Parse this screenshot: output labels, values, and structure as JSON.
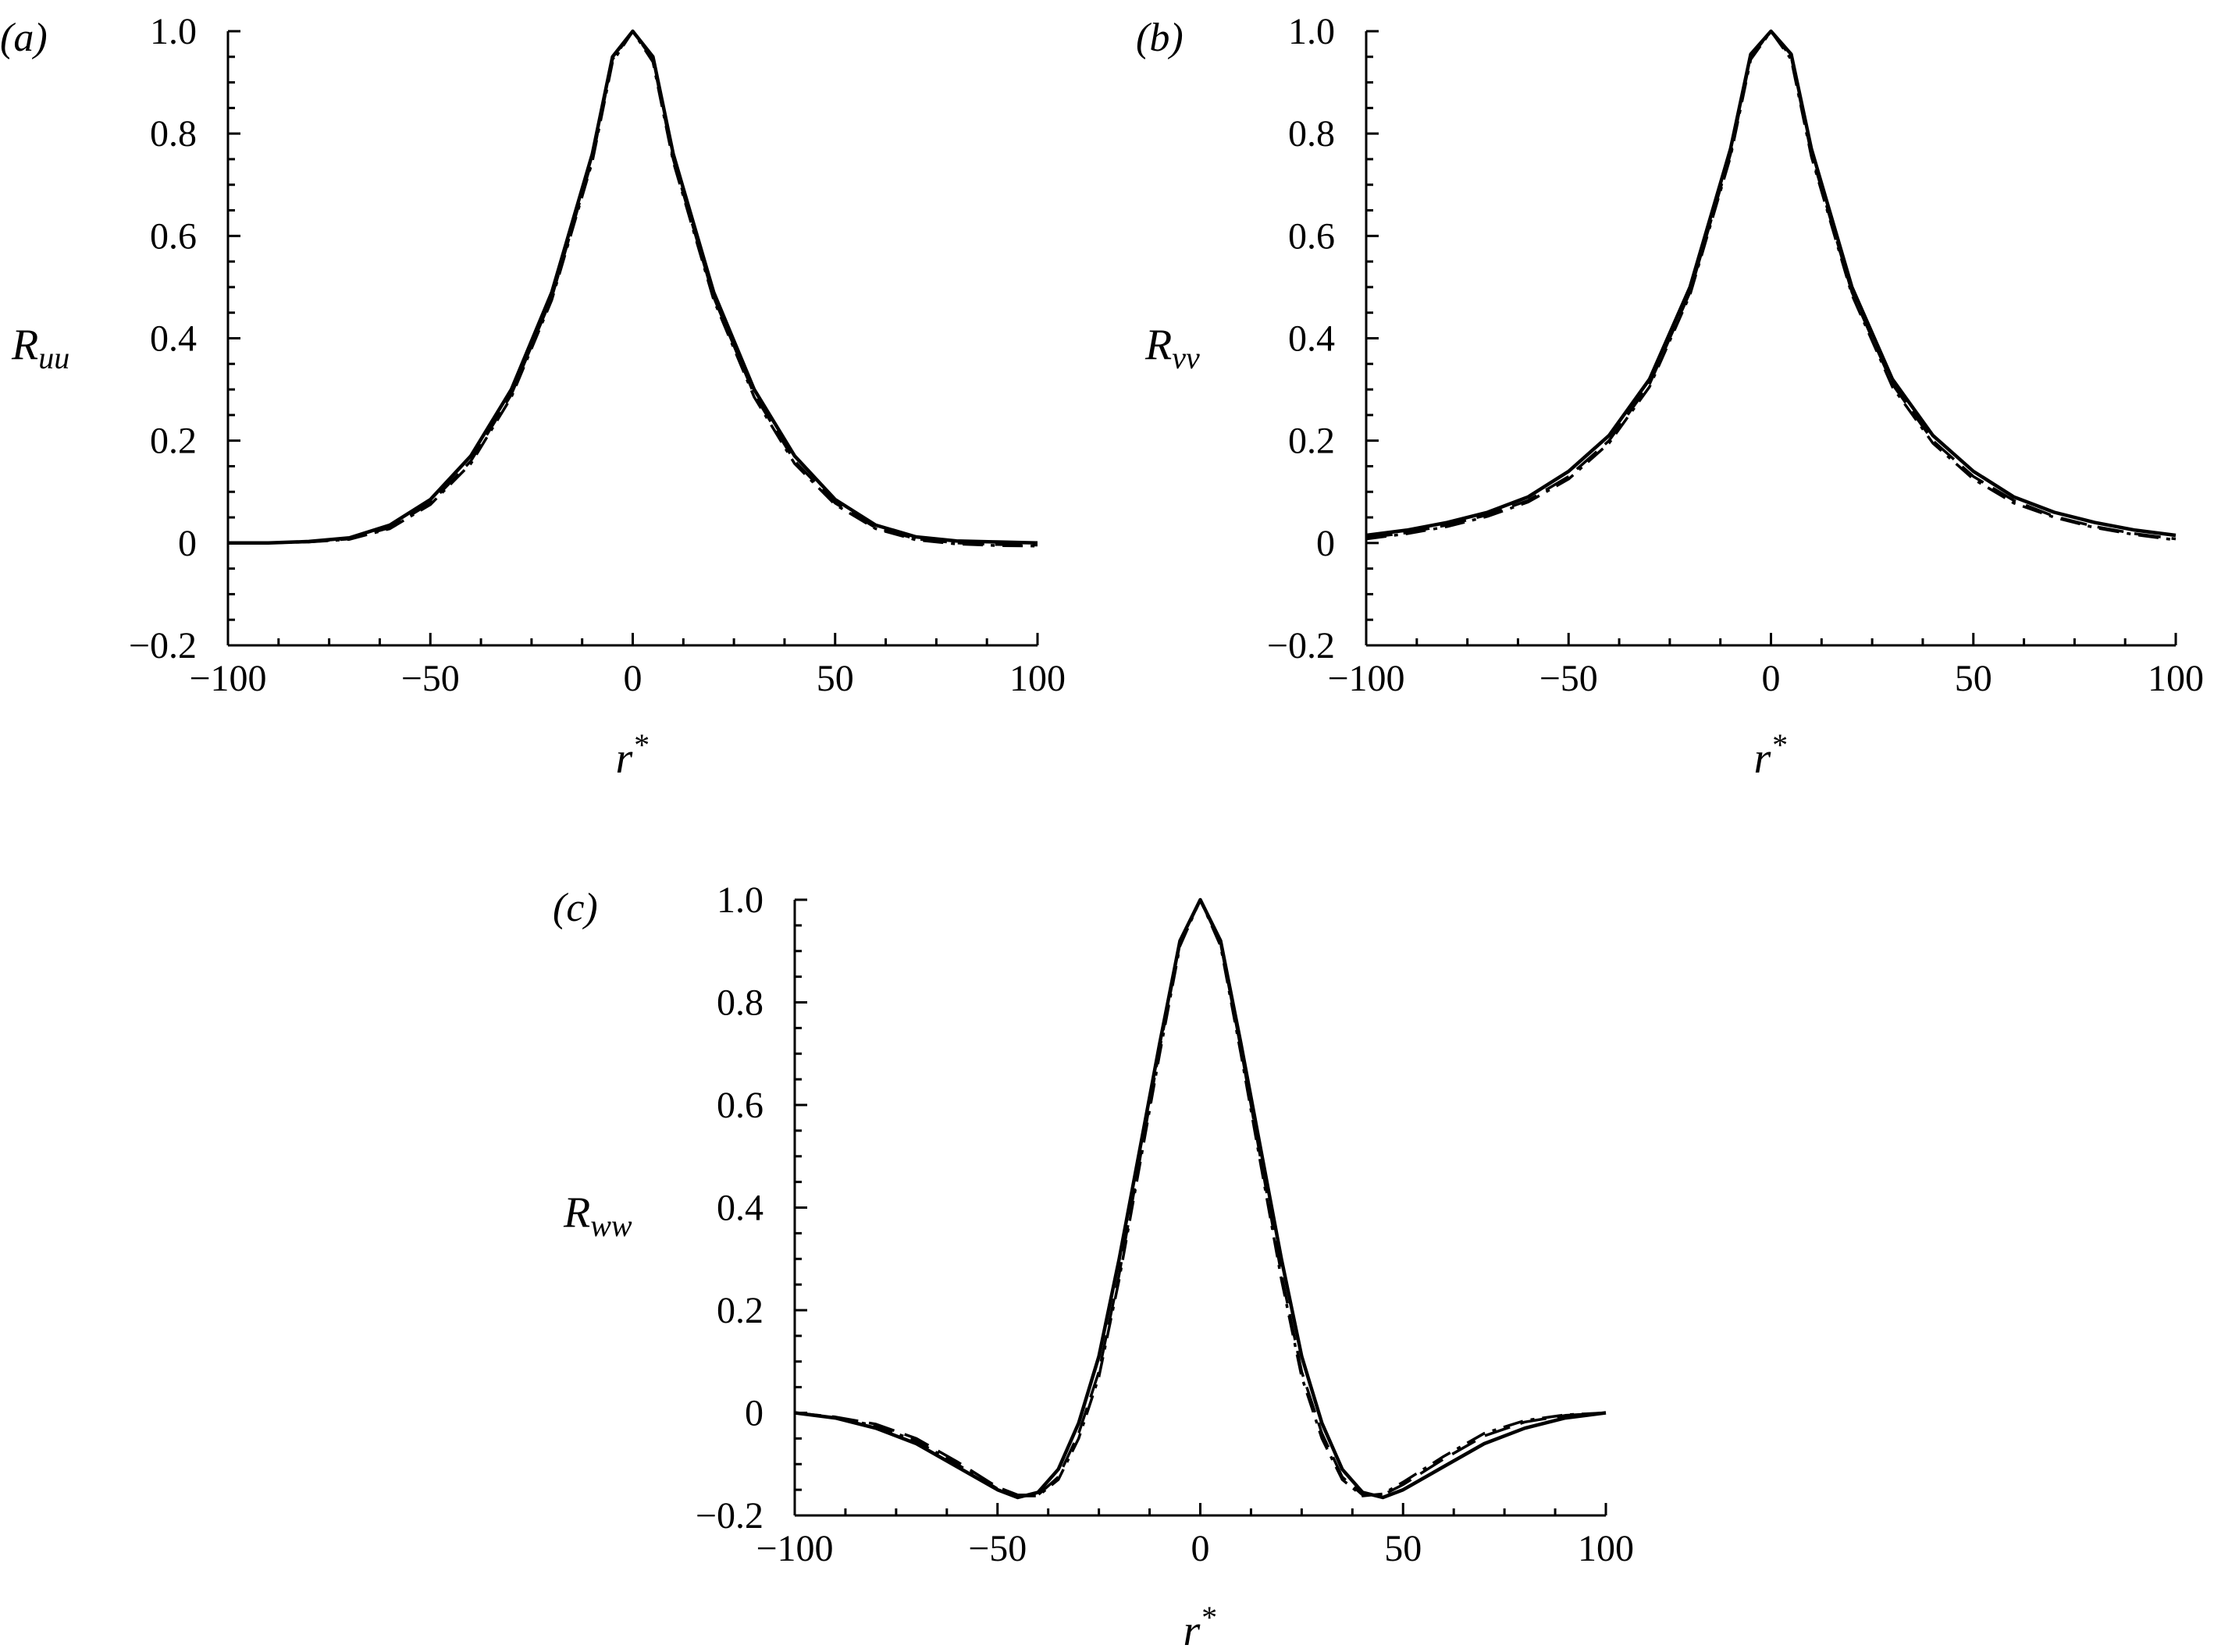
{
  "chart_data": [
    {
      "type": "line",
      "panel_label": "(a)",
      "ylabel_main": "R",
      "ylabel_sub": "uu",
      "xlabel_main": "r",
      "xlabel_sup": "*",
      "xlim": [
        -100,
        100
      ],
      "ylim": [
        -0.2,
        1.0
      ],
      "xticks": [
        -100,
        -50,
        0,
        50,
        100
      ],
      "xtick_labels": [
        "−100",
        "−50",
        "0",
        "50",
        "100"
      ],
      "yticks": [
        -0.2,
        0,
        0.2,
        0.4,
        0.6,
        0.8,
        1.0
      ],
      "ytick_labels": [
        "−0.2",
        "0",
        "0.2",
        "0.4",
        "0.6",
        "0.8",
        "1.0"
      ],
      "grid": false,
      "series": [
        {
          "style": "solid",
          "x": [
            -100,
            -90,
            -80,
            -70,
            -60,
            -50,
            -40,
            -30,
            -20,
            -10,
            -5,
            0,
            5,
            10,
            20,
            30,
            40,
            50,
            60,
            70,
            80,
            90,
            100
          ],
          "y": [
            0.0,
            0.0,
            0.003,
            0.01,
            0.035,
            0.085,
            0.17,
            0.3,
            0.49,
            0.76,
            0.95,
            1.0,
            0.95,
            0.76,
            0.49,
            0.3,
            0.17,
            0.085,
            0.035,
            0.012,
            0.004,
            0.002,
            0.0
          ]
        },
        {
          "style": "dashed",
          "x": [
            -100,
            -90,
            -80,
            -70,
            -60,
            -50,
            -40,
            -30,
            -20,
            -10,
            -5,
            0,
            5,
            10,
            20,
            30,
            40,
            50,
            60,
            70,
            80,
            90,
            100
          ],
          "y": [
            0.0,
            0.0,
            0.002,
            0.008,
            0.03,
            0.078,
            0.16,
            0.29,
            0.48,
            0.75,
            0.945,
            1.0,
            0.945,
            0.75,
            0.48,
            0.29,
            0.16,
            0.078,
            0.03,
            0.008,
            0.0,
            -0.003,
            -0.004
          ]
        },
        {
          "style": "dash-dot",
          "x": [
            -100,
            -90,
            -80,
            -70,
            -60,
            -50,
            -40,
            -30,
            -20,
            -10,
            -5,
            0,
            5,
            10,
            20,
            30,
            40,
            50,
            60,
            70,
            80,
            90,
            100
          ],
          "y": [
            0.0,
            0.0,
            0.002,
            0.007,
            0.028,
            0.075,
            0.155,
            0.285,
            0.475,
            0.745,
            0.94,
            1.0,
            0.94,
            0.745,
            0.475,
            0.285,
            0.155,
            0.075,
            0.028,
            0.006,
            -0.002,
            -0.005,
            -0.006
          ]
        }
      ]
    },
    {
      "type": "line",
      "panel_label": "(b)",
      "ylabel_main": "R",
      "ylabel_sub": "vv",
      "xlabel_main": "r",
      "xlabel_sup": "*",
      "xlim": [
        -100,
        100
      ],
      "ylim": [
        -0.2,
        1.0
      ],
      "xticks": [
        -100,
        -50,
        0,
        50,
        100
      ],
      "xtick_labels": [
        "−100",
        "−50",
        "0",
        "50",
        "100"
      ],
      "yticks": [
        -0.2,
        0,
        0.2,
        0.4,
        0.6,
        0.8,
        1.0
      ],
      "ytick_labels": [
        "−0.2",
        "0",
        "0.2",
        "0.4",
        "0.6",
        "0.8",
        "1.0"
      ],
      "grid": false,
      "series": [
        {
          "style": "solid",
          "x": [
            -100,
            -90,
            -80,
            -70,
            -60,
            -50,
            -40,
            -30,
            -20,
            -10,
            -5,
            0,
            5,
            10,
            20,
            30,
            40,
            50,
            60,
            70,
            80,
            90,
            100
          ],
          "y": [
            0.015,
            0.025,
            0.04,
            0.06,
            0.09,
            0.14,
            0.21,
            0.32,
            0.5,
            0.77,
            0.955,
            1.0,
            0.955,
            0.77,
            0.5,
            0.32,
            0.21,
            0.14,
            0.09,
            0.06,
            0.04,
            0.025,
            0.015
          ]
        },
        {
          "style": "dashed",
          "x": [
            -100,
            -90,
            -80,
            -70,
            -60,
            -50,
            -40,
            -30,
            -20,
            -10,
            -5,
            0,
            5,
            10,
            20,
            30,
            40,
            50,
            60,
            70,
            80,
            90,
            100
          ],
          "y": [
            0.01,
            0.02,
            0.035,
            0.055,
            0.083,
            0.13,
            0.2,
            0.31,
            0.49,
            0.76,
            0.95,
            1.0,
            0.95,
            0.76,
            0.49,
            0.31,
            0.2,
            0.13,
            0.083,
            0.052,
            0.032,
            0.018,
            0.008
          ]
        },
        {
          "style": "dash-dot",
          "x": [
            -100,
            -90,
            -80,
            -70,
            -60,
            -50,
            -40,
            -30,
            -20,
            -10,
            -5,
            0,
            5,
            10,
            20,
            30,
            40,
            50,
            60,
            70,
            80,
            90,
            100
          ],
          "y": [
            0.008,
            0.018,
            0.032,
            0.052,
            0.08,
            0.125,
            0.195,
            0.305,
            0.485,
            0.755,
            0.945,
            1.0,
            0.945,
            0.755,
            0.485,
            0.305,
            0.195,
            0.125,
            0.078,
            0.05,
            0.03,
            0.016,
            0.006
          ]
        }
      ]
    },
    {
      "type": "line",
      "panel_label": "(c)",
      "ylabel_main": "R",
      "ylabel_sub": "ww",
      "xlabel_main": "r",
      "xlabel_sup": "*",
      "xlim": [
        -100,
        100
      ],
      "ylim": [
        -0.2,
        1.0
      ],
      "xticks": [
        -100,
        -50,
        0,
        50,
        100
      ],
      "xtick_labels": [
        "−100",
        "−50",
        "0",
        "50",
        "100"
      ],
      "yticks": [
        -0.2,
        0,
        0.2,
        0.4,
        0.6,
        0.8,
        1.0
      ],
      "ytick_labels": [
        "−0.2",
        "0",
        "0.2",
        "0.4",
        "0.6",
        "0.8",
        "1.0"
      ],
      "grid": false,
      "series": [
        {
          "style": "solid",
          "x": [
            -100,
            -90,
            -80,
            -70,
            -60,
            -50,
            -45,
            -40,
            -35,
            -30,
            -25,
            -20,
            -15,
            -10,
            -5,
            0,
            5,
            10,
            15,
            20,
            25,
            30,
            35,
            40,
            45,
            50,
            60,
            70,
            80,
            90,
            100
          ],
          "y": [
            0.0,
            -0.01,
            -0.03,
            -0.06,
            -0.105,
            -0.15,
            -0.165,
            -0.155,
            -0.11,
            -0.02,
            0.11,
            0.3,
            0.51,
            0.72,
            0.92,
            1.0,
            0.92,
            0.72,
            0.51,
            0.3,
            0.11,
            -0.02,
            -0.11,
            -0.155,
            -0.165,
            -0.15,
            -0.105,
            -0.06,
            -0.03,
            -0.01,
            0.0
          ]
        },
        {
          "style": "dashed",
          "x": [
            -100,
            -90,
            -80,
            -70,
            -60,
            -50,
            -45,
            -40,
            -35,
            -30,
            -25,
            -20,
            -15,
            -10,
            -5,
            0,
            5,
            10,
            15,
            20,
            25,
            30,
            35,
            40,
            45,
            50,
            60,
            70,
            80,
            90,
            100
          ],
          "y": [
            0.0,
            -0.008,
            -0.022,
            -0.05,
            -0.095,
            -0.145,
            -0.16,
            -0.16,
            -0.125,
            -0.04,
            0.08,
            0.27,
            0.49,
            0.71,
            0.915,
            1.0,
            0.915,
            0.71,
            0.49,
            0.27,
            0.08,
            -0.04,
            -0.125,
            -0.16,
            -0.16,
            -0.14,
            -0.09,
            -0.045,
            -0.018,
            -0.005,
            0.0
          ]
        },
        {
          "style": "dash-dot",
          "x": [
            -100,
            -90,
            -80,
            -70,
            -60,
            -50,
            -45,
            -40,
            -35,
            -30,
            -25,
            -20,
            -15,
            -10,
            -5,
            0,
            5,
            10,
            15,
            20,
            25,
            30,
            35,
            40,
            45,
            50,
            60,
            70,
            80,
            90,
            100
          ],
          "y": [
            0.0,
            -0.01,
            -0.025,
            -0.055,
            -0.1,
            -0.148,
            -0.162,
            -0.162,
            -0.13,
            -0.05,
            0.07,
            0.26,
            0.48,
            0.7,
            0.91,
            1.0,
            0.91,
            0.7,
            0.48,
            0.26,
            0.07,
            -0.05,
            -0.13,
            -0.162,
            -0.158,
            -0.135,
            -0.085,
            -0.04,
            -0.015,
            -0.004,
            0.0
          ]
        }
      ]
    }
  ]
}
